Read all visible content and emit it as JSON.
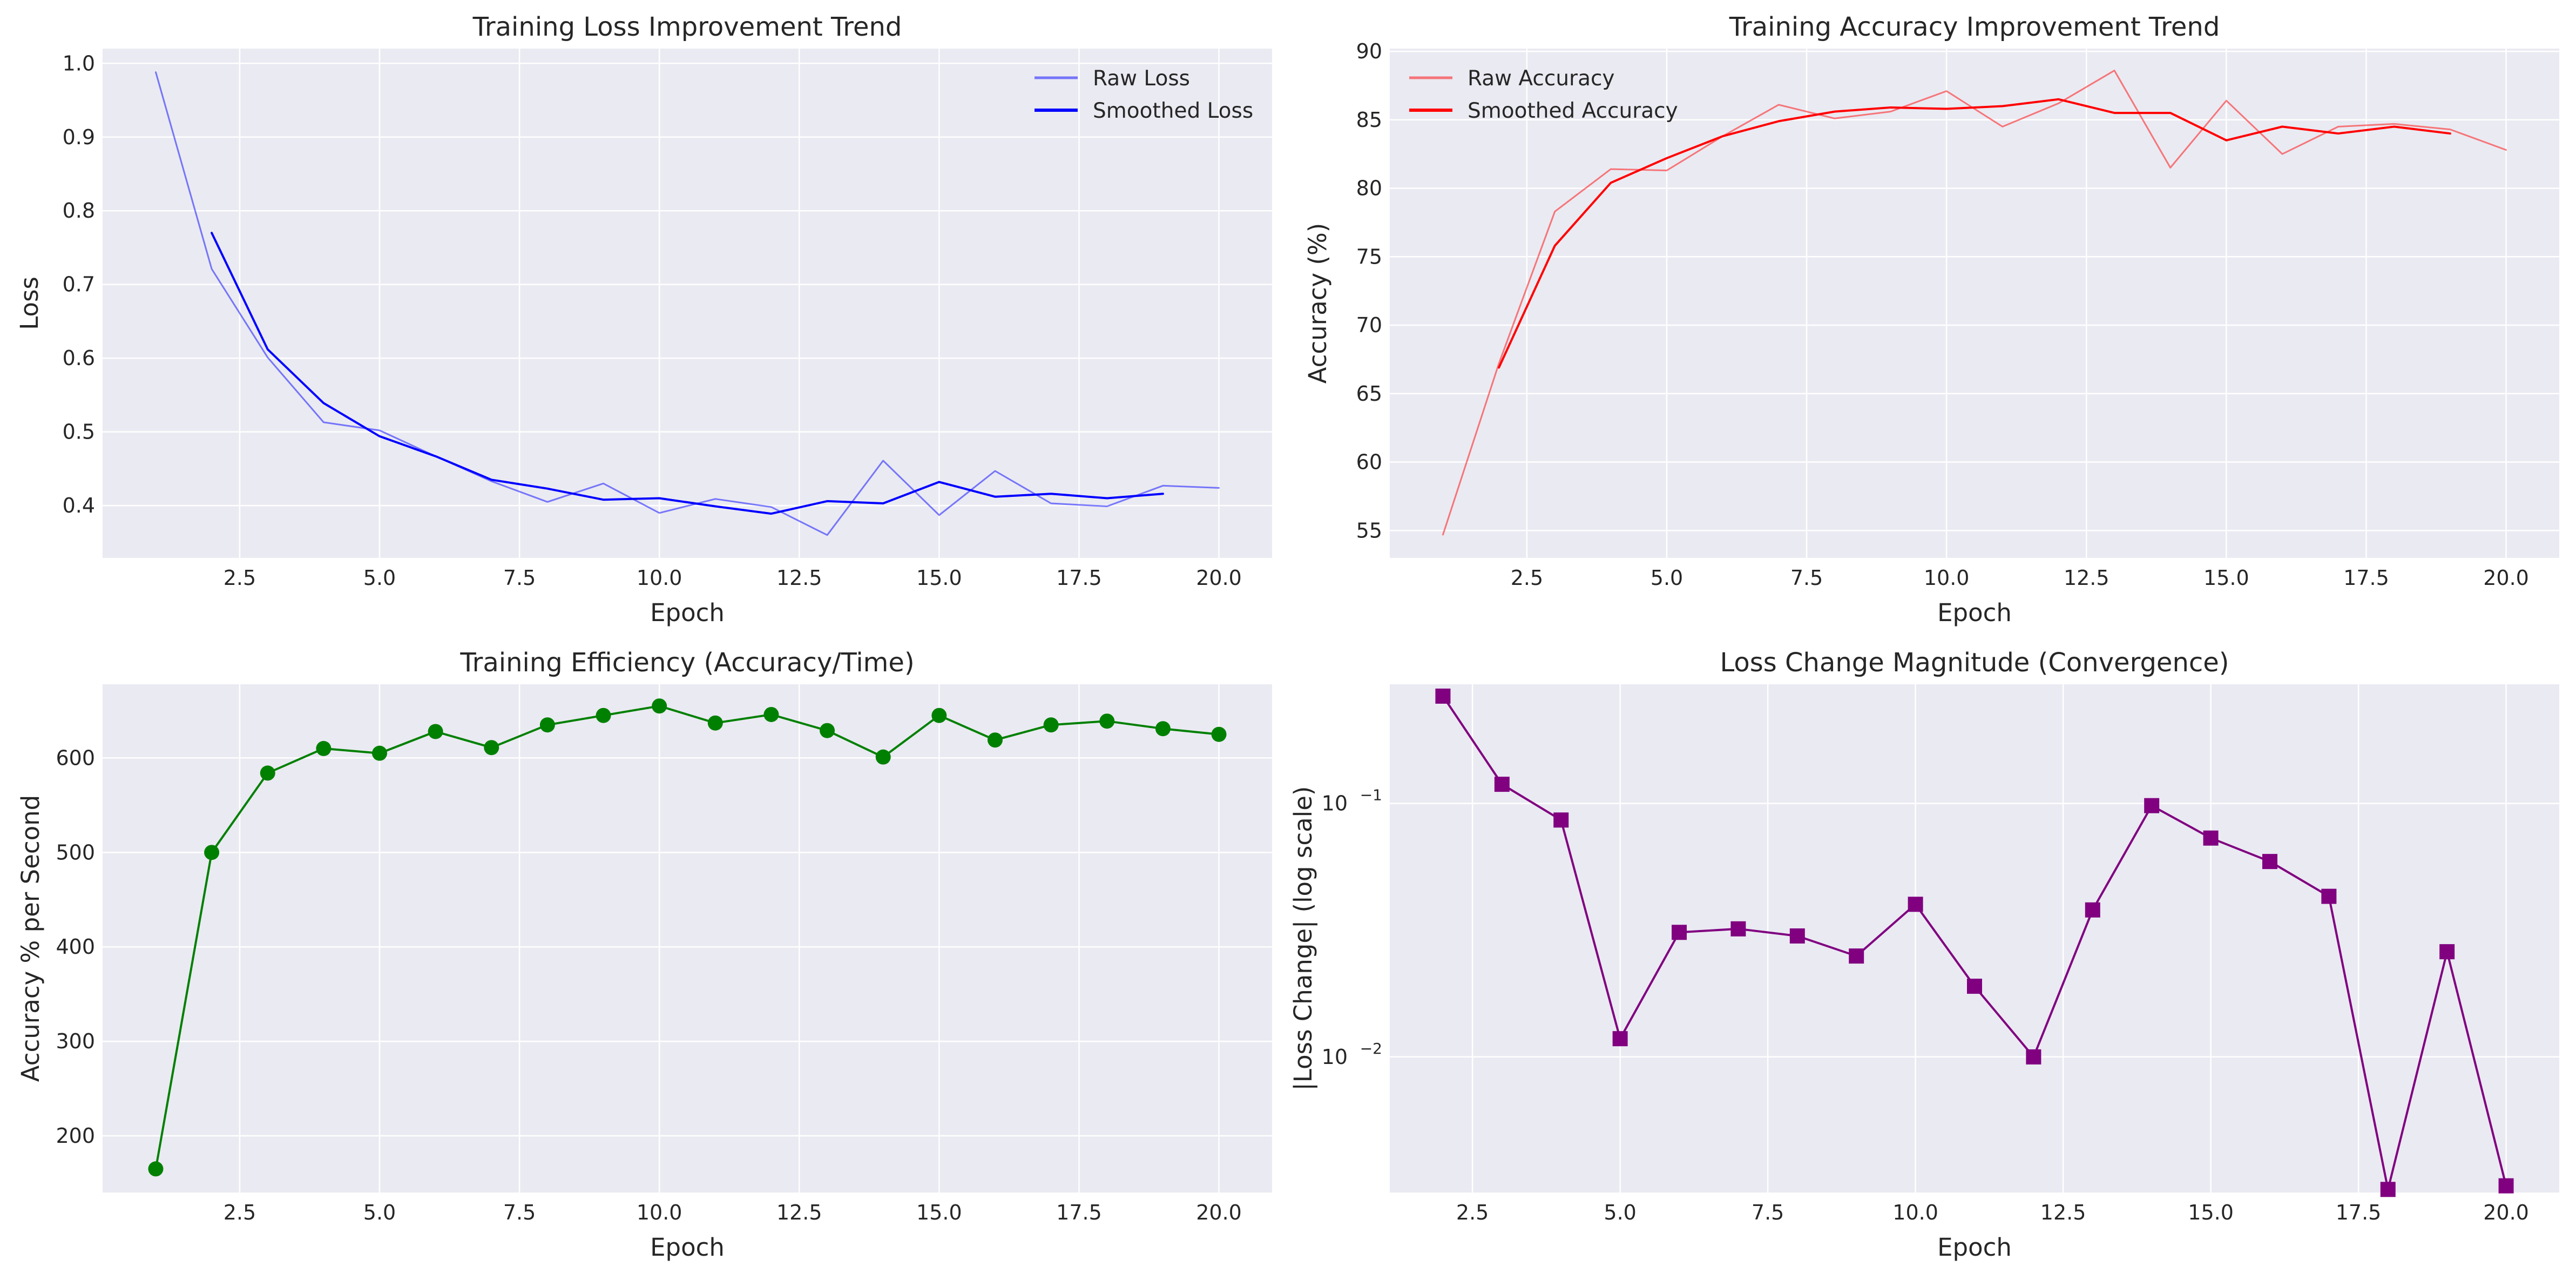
{
  "figure": {
    "background": "#ffffff",
    "axes_bg": "#eaeaf2",
    "grid_color": "#ffffff",
    "text_color": "#262626"
  },
  "chart_data": [
    {
      "type": "line",
      "title": "Training Loss Improvement Trend",
      "xlabel": "Epoch",
      "ylabel": "Loss",
      "xlim": [
        0.05,
        20.95
      ],
      "ylim": [
        0.329,
        1.02
      ],
      "xticks": [
        2.5,
        5.0,
        7.5,
        10.0,
        12.5,
        15.0,
        17.5,
        20.0
      ],
      "xtick_labels": [
        "2.5",
        "5.0",
        "7.5",
        "10.0",
        "12.5",
        "15.0",
        "17.5",
        "20.0"
      ],
      "yticks": [
        0.4,
        0.5,
        0.6,
        0.7,
        0.8,
        0.9,
        1.0
      ],
      "ytick_labels": [
        "0.4",
        "0.5",
        "0.6",
        "0.7",
        "0.8",
        "0.9",
        "1.0"
      ],
      "yscale": "linear",
      "grid": true,
      "legend": "upper-right",
      "series": [
        {
          "name": "Raw Loss",
          "color": "#0000ff",
          "opacity": 0.5,
          "line_width": 3,
          "x": [
            1,
            2,
            3,
            4,
            5,
            6,
            7,
            8,
            9,
            10,
            11,
            12,
            13,
            14,
            15,
            16,
            17,
            18,
            19,
            20
          ],
          "y": [
            0.988,
            0.721,
            0.601,
            0.513,
            0.502,
            0.467,
            0.433,
            0.405,
            0.43,
            0.39,
            0.409,
            0.398,
            0.36,
            0.461,
            0.387,
            0.447,
            0.403,
            0.399,
            0.427,
            0.424
          ]
        },
        {
          "name": "Smoothed Loss",
          "color": "#0000ff",
          "opacity": 1.0,
          "line_width": 4,
          "x": [
            2,
            3,
            4,
            5,
            6,
            7,
            8,
            9,
            10,
            11,
            12,
            13,
            14,
            15,
            16,
            17,
            18,
            19
          ],
          "y": [
            0.77,
            0.612,
            0.539,
            0.494,
            0.467,
            0.435,
            0.423,
            0.408,
            0.41,
            0.399,
            0.389,
            0.406,
            0.403,
            0.432,
            0.412,
            0.416,
            0.41,
            0.416
          ]
        }
      ]
    },
    {
      "type": "line",
      "title": "Training Accuracy Improvement Trend",
      "xlabel": "Epoch",
      "ylabel": "Accuracy (%)",
      "xlim": [
        0.05,
        20.95
      ],
      "ylim": [
        53.0,
        90.2
      ],
      "xticks": [
        2.5,
        5.0,
        7.5,
        10.0,
        12.5,
        15.0,
        17.5,
        20.0
      ],
      "xtick_labels": [
        "2.5",
        "5.0",
        "7.5",
        "10.0",
        "12.5",
        "15.0",
        "17.5",
        "20.0"
      ],
      "yticks": [
        55,
        60,
        65,
        70,
        75,
        80,
        85,
        90
      ],
      "ytick_labels": [
        "55",
        "60",
        "65",
        "70",
        "75",
        "80",
        "85",
        "90"
      ],
      "yscale": "linear",
      "grid": true,
      "legend": "upper-left",
      "series": [
        {
          "name": "Raw Accuracy",
          "color": "#ff0000",
          "opacity": 0.5,
          "line_width": 3,
          "x": [
            1,
            2,
            3,
            4,
            5,
            6,
            7,
            8,
            9,
            10,
            11,
            12,
            13,
            14,
            15,
            16,
            17,
            18,
            19,
            20
          ],
          "y": [
            54.7,
            67.2,
            78.3,
            81.4,
            81.3,
            83.8,
            86.1,
            85.1,
            85.6,
            87.1,
            84.5,
            86.2,
            88.6,
            81.5,
            86.4,
            82.5,
            84.5,
            84.7,
            84.3,
            82.8
          ]
        },
        {
          "name": "Smoothed Accuracy",
          "color": "#ff0000",
          "opacity": 1.0,
          "line_width": 4,
          "x": [
            2,
            3,
            4,
            5,
            6,
            7,
            8,
            9,
            10,
            11,
            12,
            13,
            14,
            15,
            16,
            17,
            18,
            19
          ],
          "y": [
            66.9,
            75.8,
            80.4,
            82.2,
            83.8,
            84.9,
            85.6,
            85.9,
            85.8,
            86.0,
            86.5,
            85.5,
            85.5,
            83.5,
            84.5,
            84.0,
            84.5,
            84.0
          ]
        }
      ]
    },
    {
      "type": "line",
      "title": "Training Efficiency (Accuracy/Time)",
      "xlabel": "Epoch",
      "ylabel": "Accuracy % per Second",
      "xlim": [
        0.05,
        20.95
      ],
      "ylim": [
        140,
        678
      ],
      "xticks": [
        2.5,
        5.0,
        7.5,
        10.0,
        12.5,
        15.0,
        17.5,
        20.0
      ],
      "xtick_labels": [
        "2.5",
        "5.0",
        "7.5",
        "10.0",
        "12.5",
        "15.0",
        "17.5",
        "20.0"
      ],
      "yticks": [
        200,
        300,
        400,
        500,
        600
      ],
      "ytick_labels": [
        "200",
        "300",
        "400",
        "500",
        "600"
      ],
      "yscale": "linear",
      "grid": true,
      "series": [
        {
          "color": "#008000",
          "opacity": 1.0,
          "line_width": 4,
          "marker": "circle",
          "x": [
            1,
            2,
            3,
            4,
            5,
            6,
            7,
            8,
            9,
            10,
            11,
            12,
            13,
            14,
            15,
            16,
            17,
            18,
            19,
            20
          ],
          "y": [
            165,
            500,
            584,
            610,
            605,
            628,
            611,
            635,
            645,
            655,
            637,
            646,
            629,
            601,
            645,
            619,
            635,
            639,
            631,
            625
          ]
        }
      ]
    },
    {
      "type": "line",
      "title": "Loss Change Magnitude (Convergence)",
      "xlabel": "Epoch",
      "ylabel": "|Loss Change| (log scale)",
      "xlim": [
        1.1,
        20.9
      ],
      "ylim_log10": [
        -2.535,
        -0.53
      ],
      "xticks": [
        2.5,
        5.0,
        7.5,
        10.0,
        12.5,
        15.0,
        17.5,
        20.0
      ],
      "xtick_labels": [
        "2.5",
        "5.0",
        "7.5",
        "10.0",
        "12.5",
        "15.0",
        "17.5",
        "20.0"
      ],
      "ytick_exponents": [
        -1,
        -2
      ],
      "ytick_labels": [
        "10",
        "10"
      ],
      "ytick_sup": [
        "−1",
        "−2"
      ],
      "yscale": "log",
      "grid": true,
      "series": [
        {
          "color": "#800080",
          "opacity": 1.0,
          "line_width": 4,
          "marker": "square",
          "x": [
            2,
            3,
            4,
            5,
            6,
            7,
            8,
            9,
            10,
            11,
            12,
            13,
            14,
            15,
            16,
            17,
            18,
            19,
            20
          ],
          "y": [
            0.265,
            0.119,
            0.086,
            0.0118,
            0.031,
            0.032,
            0.03,
            0.025,
            0.04,
            0.019,
            0.01,
            0.038,
            0.098,
            0.073,
            0.059,
            0.043,
            0.003,
            0.026,
            0.0031
          ]
        }
      ]
    }
  ]
}
